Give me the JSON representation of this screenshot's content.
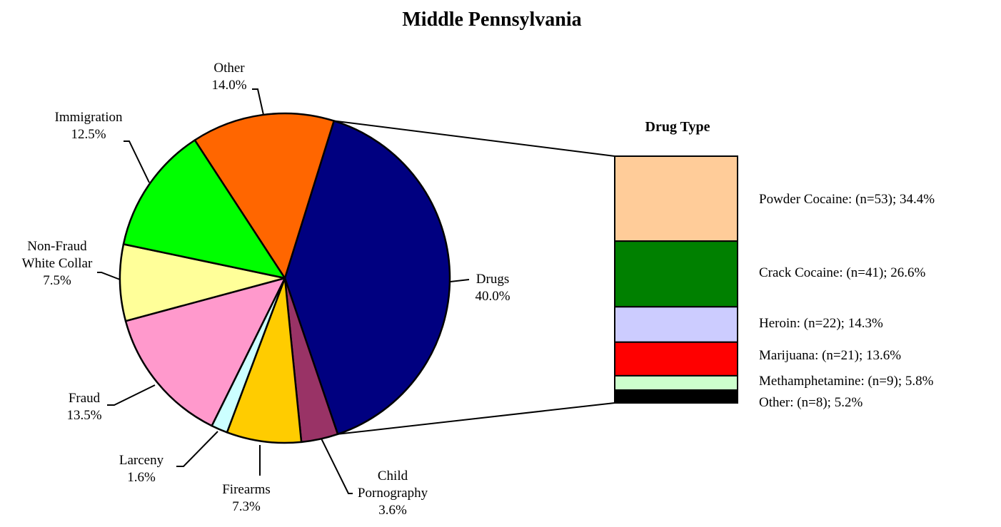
{
  "chart_data": [
    {
      "type": "pie",
      "title": "Middle Pennsylvania",
      "slices": [
        {
          "name": "Drugs",
          "label_lines": [
            "Drugs",
            "40.0%"
          ],
          "value": 40.0,
          "color": "#000080"
        },
        {
          "name": "Child Pornography",
          "label_lines": [
            "Child",
            "Pornography",
            "3.6%"
          ],
          "value": 3.6,
          "color": "#993366"
        },
        {
          "name": "Firearms",
          "label_lines": [
            "Firearms",
            "7.3%"
          ],
          "value": 7.3,
          "color": "#FFCC00"
        },
        {
          "name": "Larceny",
          "label_lines": [
            "Larceny",
            "1.6%"
          ],
          "value": 1.6,
          "color": "#CCFFFF"
        },
        {
          "name": "Fraud",
          "label_lines": [
            "Fraud",
            "13.5%"
          ],
          "value": 13.5,
          "color": "#FF99CC"
        },
        {
          "name": "Non-Fraud White Collar",
          "label_lines": [
            "Non-Fraud",
            "White Collar",
            "7.5%"
          ],
          "value": 7.5,
          "color": "#FFFF99"
        },
        {
          "name": "Immigration",
          "label_lines": [
            "Immigration",
            "12.5%"
          ],
          "value": 12.5,
          "color": "#00FF00"
        },
        {
          "name": "Other",
          "label_lines": [
            "Other",
            "14.0%"
          ],
          "value": 14.0,
          "color": "#FF6600"
        }
      ]
    },
    {
      "type": "bar",
      "stacked": true,
      "title": "Drug Type",
      "series": [
        {
          "name": "Powder Cocaine",
          "n": 53,
          "value": 34.4,
          "label": "Powder Cocaine:  (n=53); 34.4%",
          "color": "#FFCC99"
        },
        {
          "name": "Crack Cocaine",
          "n": 41,
          "value": 26.6,
          "label": "Crack Cocaine:  (n=41); 26.6%",
          "color": "#008000"
        },
        {
          "name": "Heroin",
          "n": 22,
          "value": 14.3,
          "label": "Heroin:  (n=22); 14.3%",
          "color": "#CCCCFF"
        },
        {
          "name": "Marijuana",
          "n": 21,
          "value": 13.6,
          "label": "Marijuana:  (n=21); 13.6%",
          "color": "#FF0000"
        },
        {
          "name": "Methamphetamine",
          "n": 9,
          "value": 5.8,
          "label": "Methamphetamine:  (n=9); 5.8%",
          "color": "#CCFFCC"
        },
        {
          "name": "Other",
          "n": 8,
          "value": 5.2,
          "label": "Other:  (n=8); 5.2%",
          "color": "#000000"
        }
      ]
    }
  ]
}
